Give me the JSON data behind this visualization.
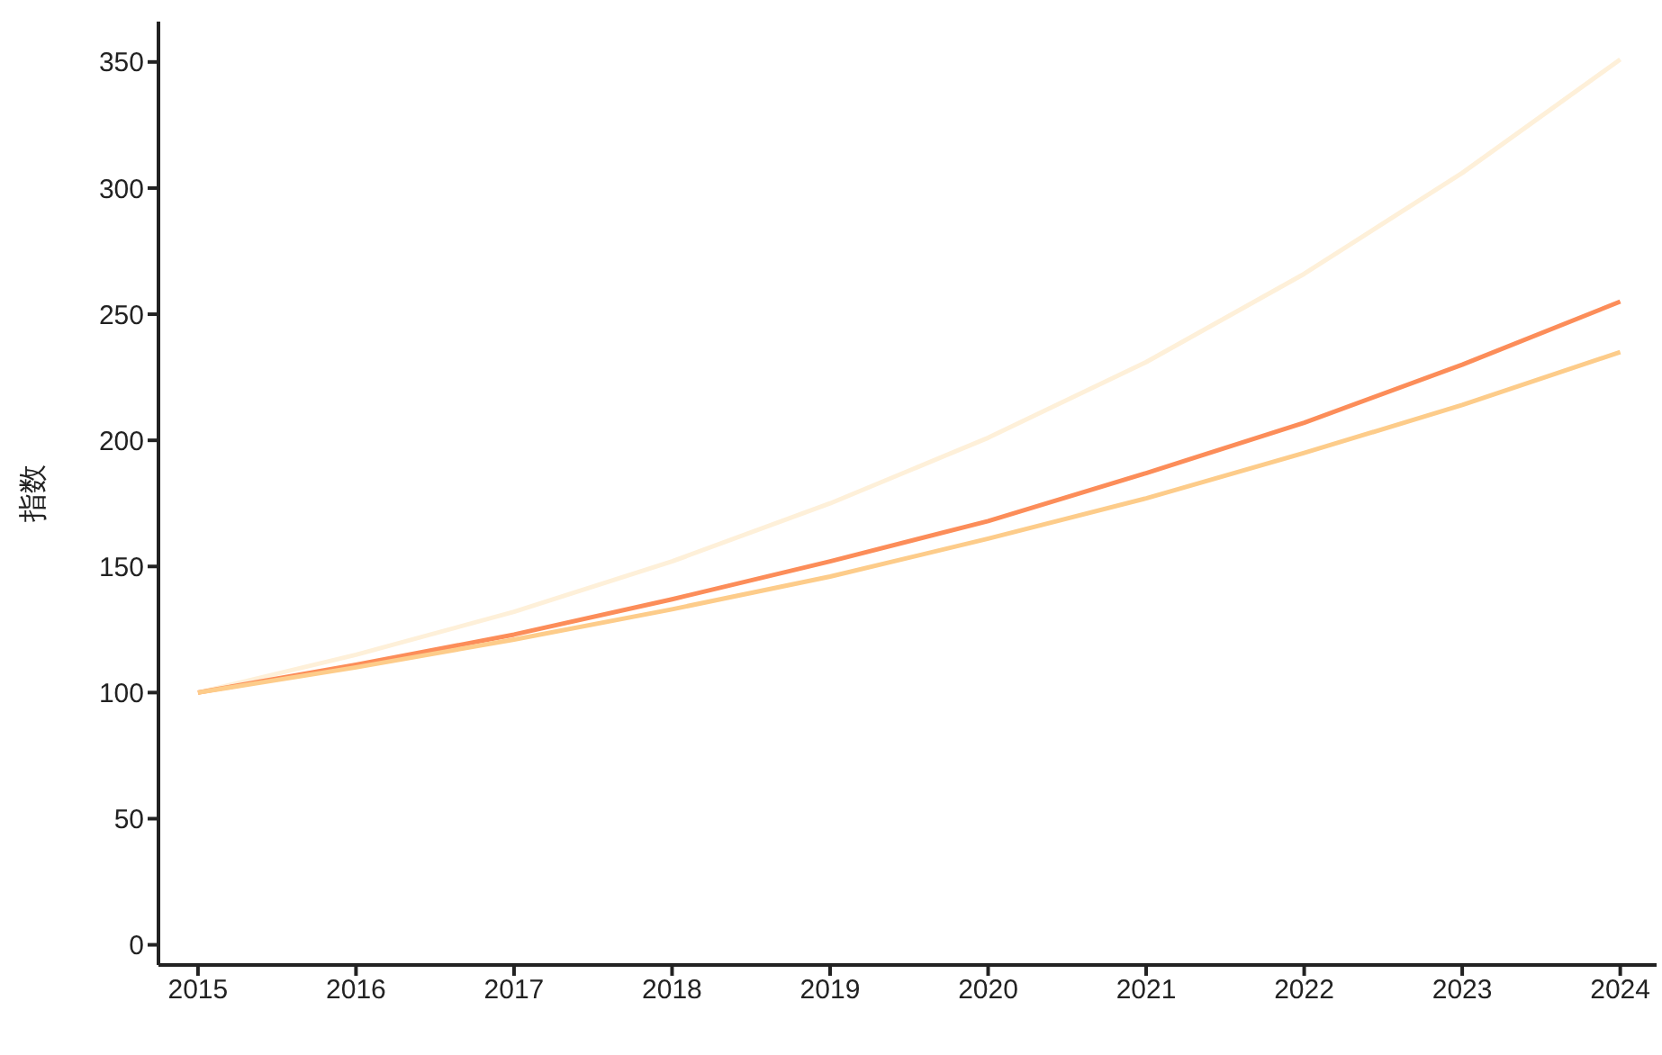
{
  "chart_data": {
    "type": "line",
    "ylabel": "指数",
    "x": [
      2015,
      2016,
      2017,
      2018,
      2019,
      2020,
      2021,
      2022,
      2023,
      2024
    ],
    "series": [
      {
        "color": "#fef0d9",
        "values": [
          100,
          115,
          132,
          152,
          175,
          201,
          231,
          266,
          306,
          351
        ]
      },
      {
        "color": "#fc8d59",
        "values": [
          100,
          111,
          123,
          137,
          152,
          168,
          187,
          207,
          230,
          255
        ]
      },
      {
        "color": "#fdcc8a",
        "values": [
          100,
          110,
          121,
          133,
          146,
          161,
          177,
          195,
          214,
          235
        ]
      }
    ],
    "xlim": [
      2014.75,
      2024.23
    ],
    "xticks": [
      2015,
      2016,
      2017,
      2018,
      2019,
      2020,
      2021,
      2022,
      2023,
      2024
    ],
    "ylim": [
      -8,
      366
    ],
    "yticks": [
      0,
      50,
      100,
      150,
      200,
      250,
      300,
      350
    ],
    "grid": false,
    "legend": false,
    "marker": "none",
    "line_style": "solid"
  }
}
